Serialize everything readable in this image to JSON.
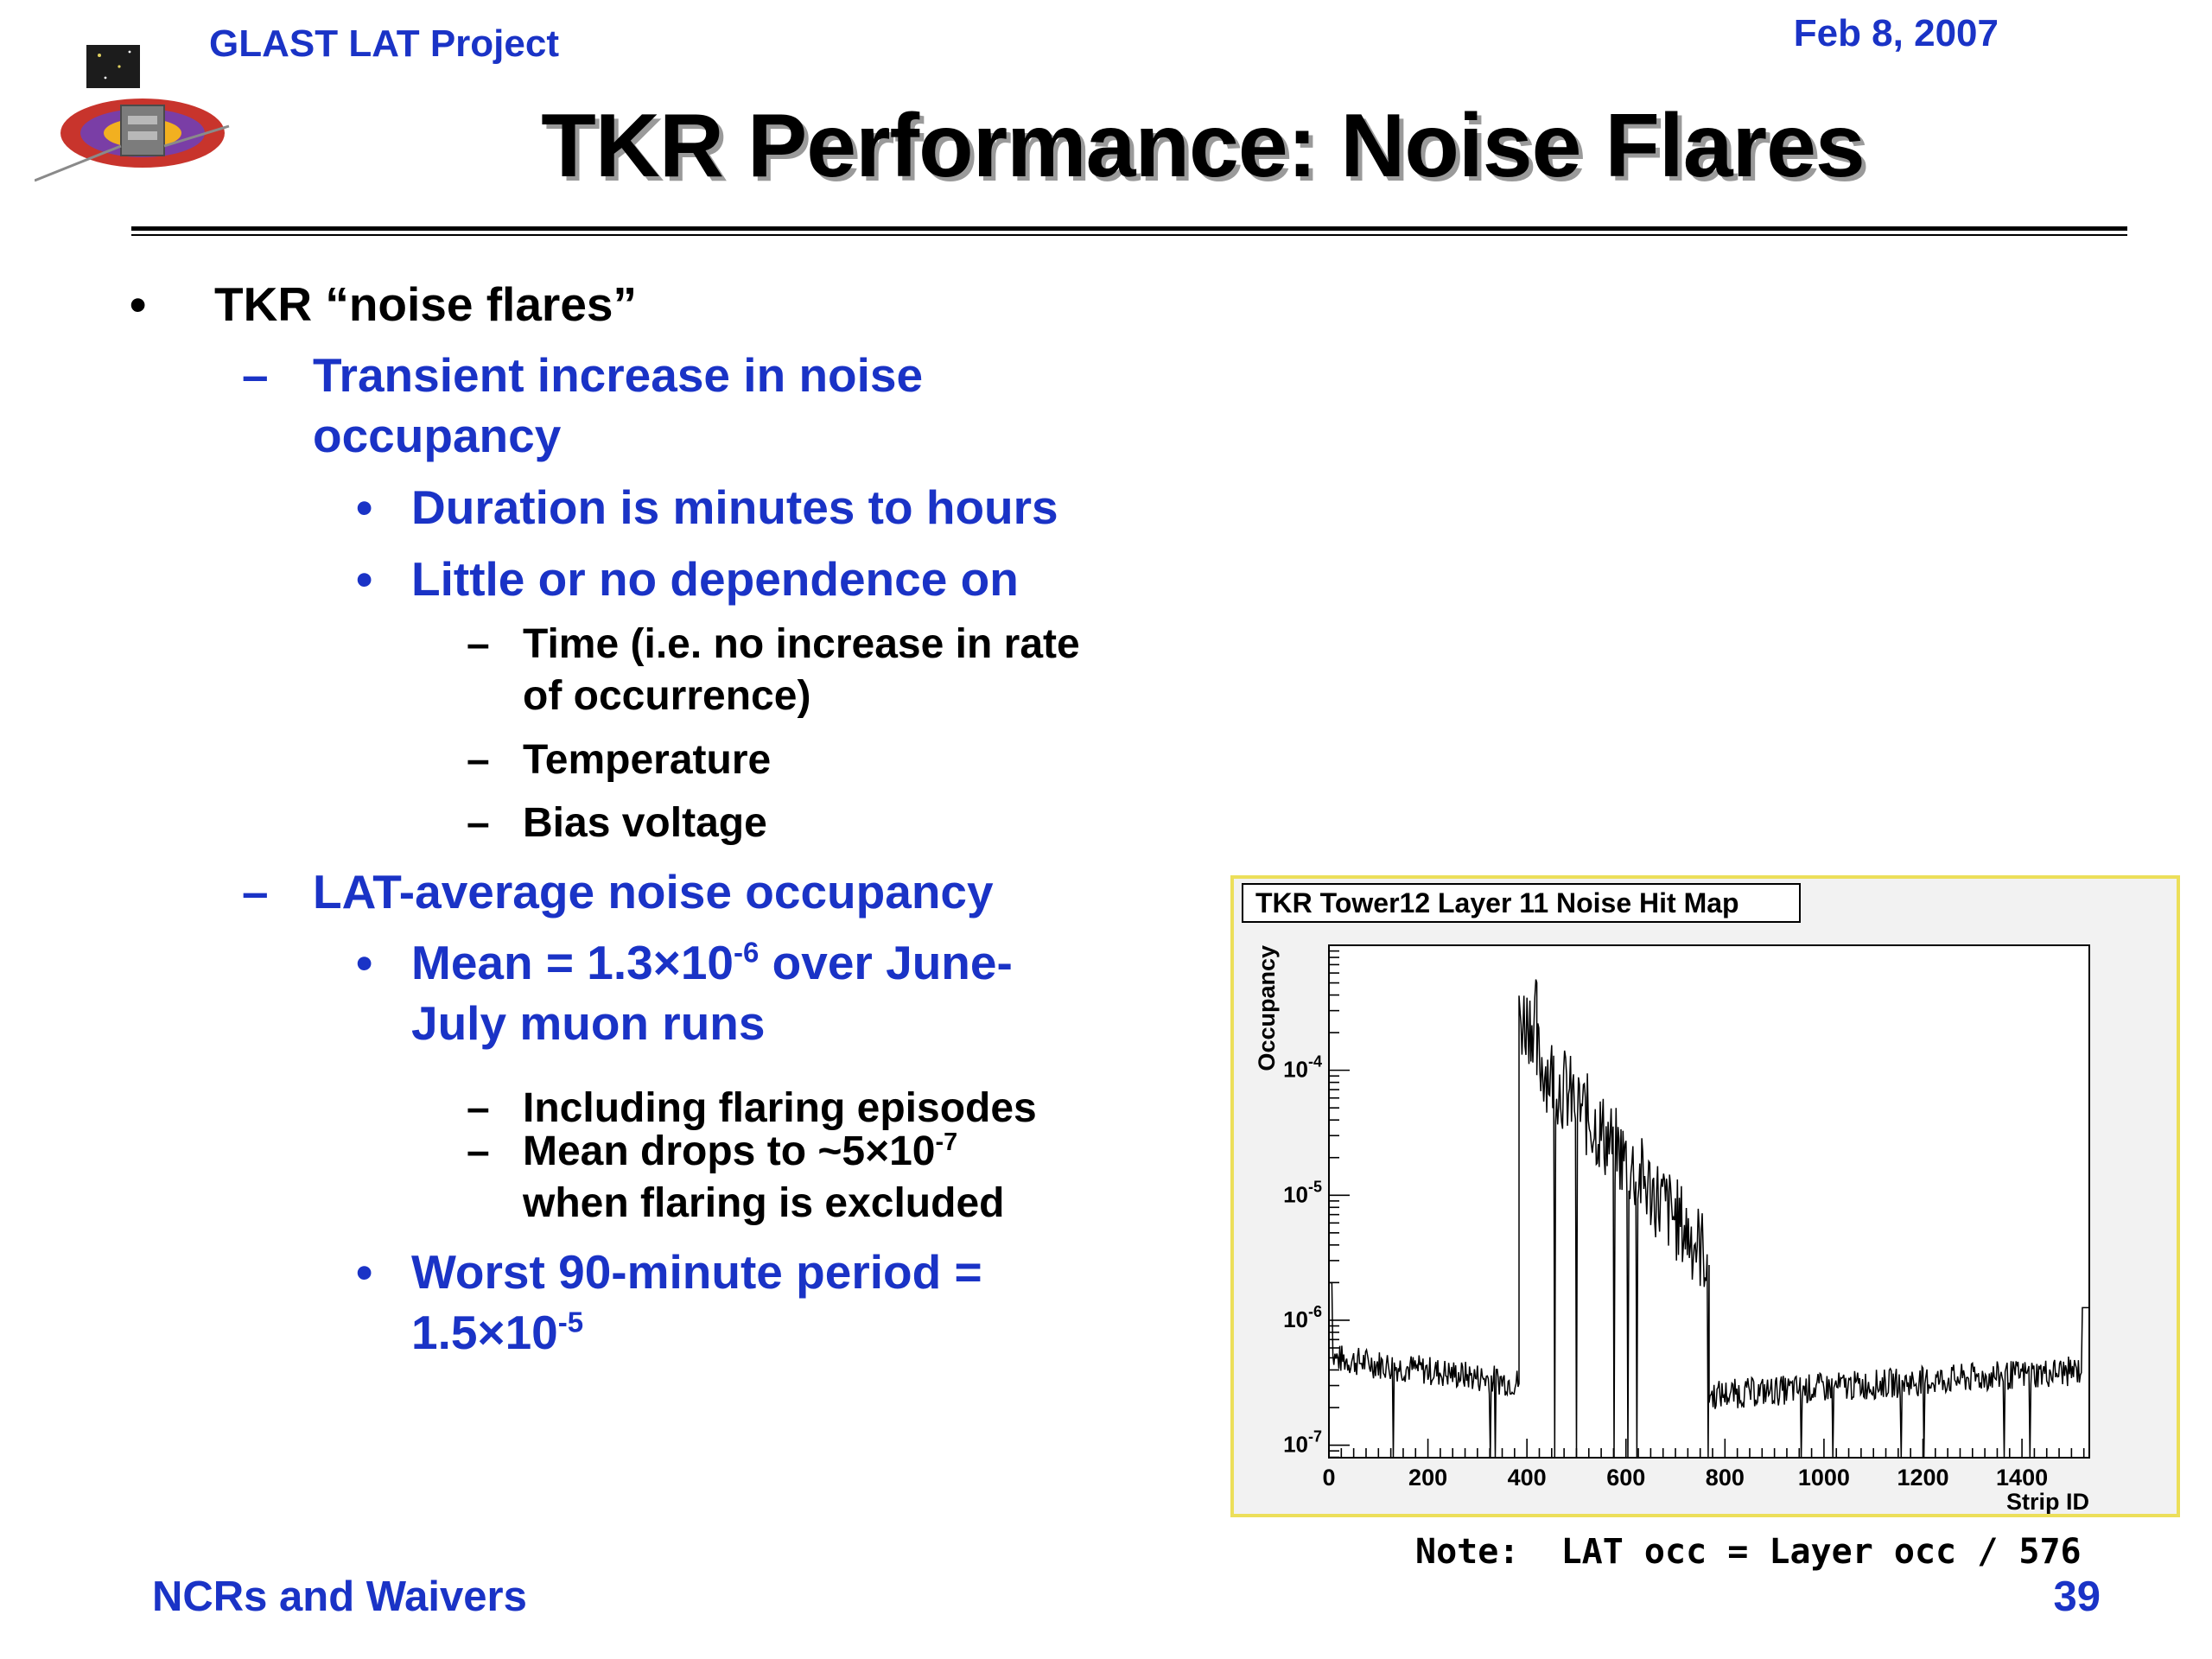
{
  "header": {
    "project": "GLAST LAT Project",
    "date": "Feb 8, 2007",
    "title": "TKR Performance:  Noise Flares"
  },
  "bullets": [
    {
      "level": 1,
      "marker": "•",
      "color": "#000000",
      "lines": [
        "TKR “noise flares”"
      ]
    },
    {
      "level": 2,
      "marker": "–",
      "color": "#1a33c6",
      "lines": [
        "Transient increase in noise",
        "occupancy"
      ]
    },
    {
      "level": 3,
      "marker": "•",
      "color": "#1a33c6",
      "lines": [
        "Duration is minutes to hours"
      ]
    },
    {
      "level": 3,
      "marker": "•",
      "color": "#1a33c6",
      "lines": [
        "Little or no dependence on"
      ]
    },
    {
      "level": 4,
      "marker": "–",
      "color": "#000000",
      "lines": [
        "Time (i.e. no increase in rate",
        "of occurrence)"
      ]
    },
    {
      "level": 4,
      "marker": "–",
      "color": "#000000",
      "lines": [
        "Temperature"
      ]
    },
    {
      "level": 4,
      "marker": "–",
      "color": "#000000",
      "lines": [
        "Bias voltage"
      ]
    },
    {
      "level": 2,
      "marker": "–",
      "color": "#1a33c6",
      "lines": [
        "LAT-average noise occupancy"
      ]
    },
    {
      "level": 3,
      "marker": "•",
      "color": "#1a33c6",
      "lines": [
        "Mean = 1.3×10^-6 over June-",
        "July muon runs"
      ]
    },
    {
      "level": 4,
      "marker": "–",
      "color": "#000000",
      "lines": [
        "Including flaring episodes"
      ]
    },
    {
      "level": 4,
      "marker": "–",
      "color": "#000000",
      "lines": [
        "Mean drops to ~5×10^-7",
        "when flaring is excluded"
      ]
    },
    {
      "level": 3,
      "marker": "•",
      "color": "#1a33c6",
      "lines": [
        "Worst 90-minute period =",
        "1.5×10^-5"
      ]
    }
  ],
  "note": "Note:  LAT occ = Layer occ / 576",
  "footer": {
    "left": "NCRs and Waivers",
    "page": "39"
  },
  "colors": {
    "accent_blue": "#1a33c6",
    "chart_frame": "#ecdf5a",
    "chart_bg": "#f2f2f2"
  },
  "chart_data": {
    "type": "line",
    "title": "TKR Tower12 Layer 11 Noise Hit Map",
    "xlabel": "Strip ID",
    "ylabel": "Occupancy",
    "xlim": [
      0,
      1536
    ],
    "ylim_log10": [
      -7.1,
      -3.0
    ],
    "log_y": true,
    "x_ticks": [
      "0",
      "200",
      "400",
      "600",
      "800",
      "1000",
      "1200",
      "1400"
    ],
    "x_tick_values": [
      0,
      200,
      400,
      600,
      800,
      1000,
      1200,
      1400
    ],
    "y_ticks": [
      "10^-4",
      "10^-5",
      "10^-6",
      "10^-7"
    ],
    "y_tick_exponents": [
      -4,
      -5,
      -6,
      -7
    ],
    "series": [
      {
        "segments": [
          {
            "x_start": 0,
            "x_end": 384,
            "log10_start": -6.3,
            "log10_end": -6.5
          },
          {
            "x_start": 384,
            "x_end": 420,
            "log10_start": -3.6,
            "log10_end": -3.6
          },
          {
            "x_start": 420,
            "x_end": 768,
            "log10_start": -3.9,
            "log10_end": -5.5
          },
          {
            "x_start": 768,
            "x_end": 1536,
            "log10_start": -6.6,
            "log10_end": -6.4
          }
        ]
      }
    ]
  }
}
